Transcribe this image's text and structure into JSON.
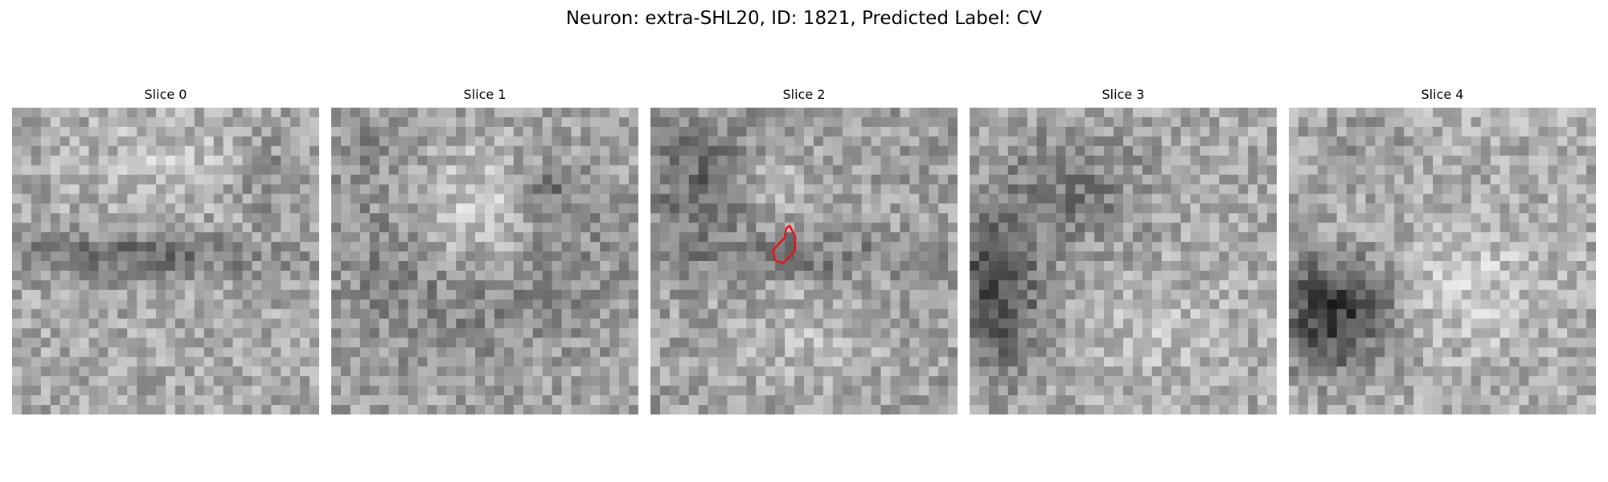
{
  "figure": {
    "title": "Neuron: extra-SHL20, ID: 1821, Predicted Label: CV"
  },
  "panels": [
    {
      "title": "Slice 0",
      "has_contour": false
    },
    {
      "title": "Slice 1",
      "has_contour": false
    },
    {
      "title": "Slice 2",
      "has_contour": true
    },
    {
      "title": "Slice 3",
      "has_contour": false
    },
    {
      "title": "Slice 4",
      "has_contour": false
    }
  ],
  "colors": {
    "contour": "#e8141a",
    "background": "#ffffff"
  }
}
